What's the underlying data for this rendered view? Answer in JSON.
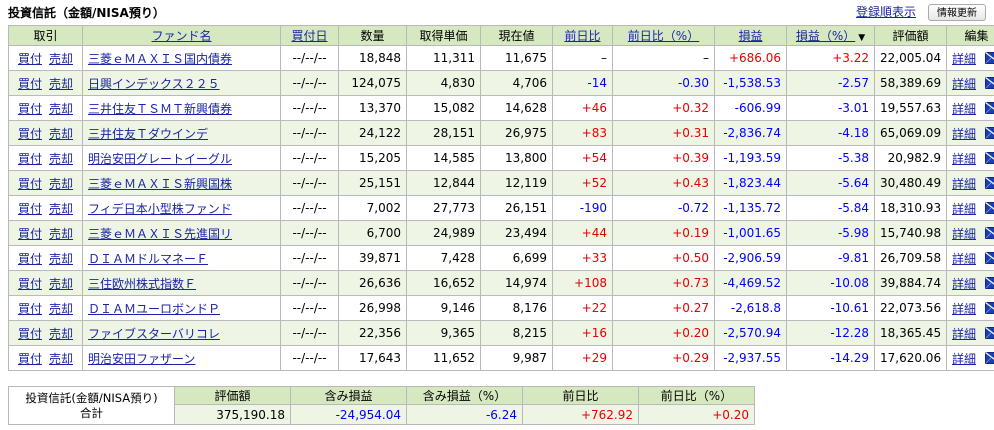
{
  "header": {
    "title": "投資信託（金額/NISA預り）",
    "sort_link": "登録順表示",
    "refresh_button": "情報更新"
  },
  "columns": {
    "trade": "取引",
    "fund": "ファンド名",
    "buy_date": "買付日",
    "qty": "数量",
    "cost": "取得単価",
    "price": "現在値",
    "day_change": "前日比",
    "day_change_pct": "前日比（%）",
    "profit": "損益",
    "profit_pct": "損益（%）",
    "value": "評価額",
    "edit": "編集"
  },
  "labels": {
    "buy": "買付",
    "sell": "売却",
    "detail": "詳細"
  },
  "icons": {
    "sort_arrow": "▼",
    "mail": "envelope-icon"
  },
  "rows": [
    {
      "fund": "三菱ｅＭＡＸＩＳ国内債券",
      "date": "--/--/--",
      "qty": "18,848",
      "cost": "11,311",
      "price": "11,675",
      "chg": "–",
      "chg_sign": "",
      "chgp": "–",
      "chgp_sign": "",
      "pl": "+686.06",
      "pl_sign": "pos",
      "plp": "+3.22",
      "plp_sign": "pos",
      "value": "22,005.04"
    },
    {
      "fund": "日興インデックス２２５",
      "date": "--/--/--",
      "qty": "124,075",
      "cost": "4,830",
      "price": "4,706",
      "chg": "-14",
      "chg_sign": "neg",
      "chgp": "-0.30",
      "chgp_sign": "neg",
      "pl": "-1,538.53",
      "pl_sign": "neg",
      "plp": "-2.57",
      "plp_sign": "neg",
      "value": "58,389.69"
    },
    {
      "fund": "三井住友ＴＳＭＴ新興債券",
      "date": "--/--/--",
      "qty": "13,370",
      "cost": "15,082",
      "price": "14,628",
      "chg": "+46",
      "chg_sign": "pos",
      "chgp": "+0.32",
      "chgp_sign": "pos",
      "pl": "-606.99",
      "pl_sign": "neg",
      "plp": "-3.01",
      "plp_sign": "neg",
      "value": "19,557.63"
    },
    {
      "fund": "三井住友Ｔダウインデ",
      "date": "--/--/--",
      "qty": "24,122",
      "cost": "28,151",
      "price": "26,975",
      "chg": "+83",
      "chg_sign": "pos",
      "chgp": "+0.31",
      "chgp_sign": "pos",
      "pl": "-2,836.74",
      "pl_sign": "neg",
      "plp": "-4.18",
      "plp_sign": "neg",
      "value": "65,069.09"
    },
    {
      "fund": "明治安田グレートイーグル",
      "date": "--/--/--",
      "qty": "15,205",
      "cost": "14,585",
      "price": "13,800",
      "chg": "+54",
      "chg_sign": "pos",
      "chgp": "+0.39",
      "chgp_sign": "pos",
      "pl": "-1,193.59",
      "pl_sign": "neg",
      "plp": "-5.38",
      "plp_sign": "neg",
      "value": "20,982.9"
    },
    {
      "fund": "三菱ｅＭＡＸＩＳ新興国株",
      "date": "--/--/--",
      "qty": "25,151",
      "cost": "12,844",
      "price": "12,119",
      "chg": "+52",
      "chg_sign": "pos",
      "chgp": "+0.43",
      "chgp_sign": "pos",
      "pl": "-1,823.44",
      "pl_sign": "neg",
      "plp": "-5.64",
      "plp_sign": "neg",
      "value": "30,480.49"
    },
    {
      "fund": "フィデ日本小型株ファンド",
      "date": "--/--/--",
      "qty": "7,002",
      "cost": "27,773",
      "price": "26,151",
      "chg": "-190",
      "chg_sign": "neg",
      "chgp": "-0.72",
      "chgp_sign": "neg",
      "pl": "-1,135.72",
      "pl_sign": "neg",
      "plp": "-5.84",
      "plp_sign": "neg",
      "value": "18,310.93"
    },
    {
      "fund": "三菱ｅＭＡＸＩＳ先進国リ",
      "date": "--/--/--",
      "qty": "6,700",
      "cost": "24,989",
      "price": "23,494",
      "chg": "+44",
      "chg_sign": "pos",
      "chgp": "+0.19",
      "chgp_sign": "pos",
      "pl": "-1,001.65",
      "pl_sign": "neg",
      "plp": "-5.98",
      "plp_sign": "neg",
      "value": "15,740.98"
    },
    {
      "fund": "ＤＩＡＭドルマネーＦ",
      "date": "--/--/--",
      "qty": "39,871",
      "cost": "7,428",
      "price": "6,699",
      "chg": "+33",
      "chg_sign": "pos",
      "chgp": "+0.50",
      "chgp_sign": "pos",
      "pl": "-2,906.59",
      "pl_sign": "neg",
      "plp": "-9.81",
      "plp_sign": "neg",
      "value": "26,709.58"
    },
    {
      "fund": "三住欧州株式指数Ｆ",
      "date": "--/--/--",
      "qty": "26,636",
      "cost": "16,652",
      "price": "14,974",
      "chg": "+108",
      "chg_sign": "pos",
      "chgp": "+0.73",
      "chgp_sign": "pos",
      "pl": "-4,469.52",
      "pl_sign": "neg",
      "plp": "-10.08",
      "plp_sign": "neg",
      "value": "39,884.74"
    },
    {
      "fund": "ＤＩＡＭユーロボンドＰ",
      "date": "--/--/--",
      "qty": "26,998",
      "cost": "9,146",
      "price": "8,176",
      "chg": "+22",
      "chg_sign": "pos",
      "chgp": "+0.27",
      "chgp_sign": "pos",
      "pl": "-2,618.8",
      "pl_sign": "neg",
      "plp": "-10.61",
      "plp_sign": "neg",
      "value": "22,073.56"
    },
    {
      "fund": "ファイブスターバリコレ",
      "date": "--/--/--",
      "qty": "22,356",
      "cost": "9,365",
      "price": "8,215",
      "chg": "+16",
      "chg_sign": "pos",
      "chgp": "+0.20",
      "chgp_sign": "pos",
      "pl": "-2,570.94",
      "pl_sign": "neg",
      "plp": "-12.28",
      "plp_sign": "neg",
      "value": "18,365.45"
    },
    {
      "fund": "明治安田ファザーン",
      "date": "--/--/--",
      "qty": "17,643",
      "cost": "11,652",
      "price": "9,987",
      "chg": "+29",
      "chg_sign": "pos",
      "chgp": "+0.29",
      "chgp_sign": "pos",
      "pl": "-2,937.55",
      "pl_sign": "neg",
      "plp": "-14.29",
      "plp_sign": "neg",
      "value": "17,620.06"
    }
  ],
  "summary": {
    "label_line1": "投資信託(金額/NISA預り)",
    "label_line2": "合計",
    "headers": {
      "value": "評価額",
      "unrealized": "含み損益",
      "unrealized_pct": "含み損益（%）",
      "day_change": "前日比",
      "day_change_pct": "前日比（%）"
    },
    "value": "375,190.18",
    "unrealized": "-24,954.04",
    "unrealized_pct": "-6.24",
    "day_change": "+762.92",
    "day_change_pct": "+0.20"
  }
}
